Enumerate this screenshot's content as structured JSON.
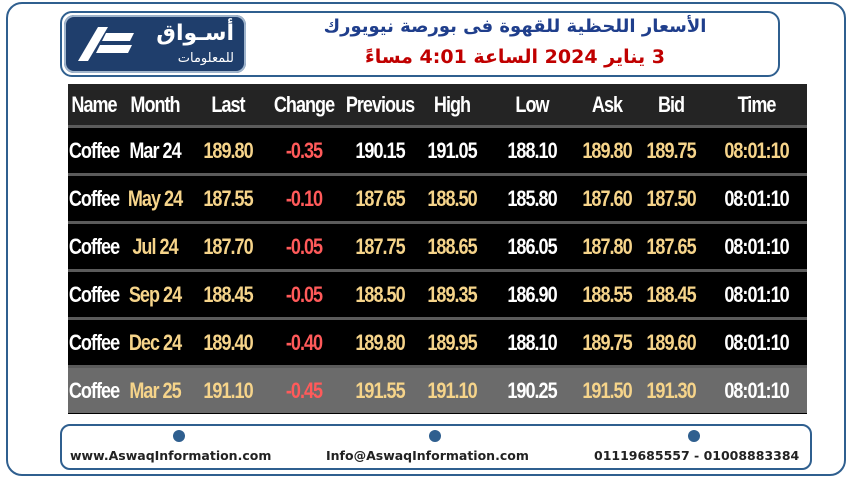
{
  "header": {
    "logo_ar": "أسـواق",
    "logo_ar_sub": "للمعلومات",
    "title_line1": "الأسعار اللحظية للقهوة فى بورصة نيويورك",
    "title_line2": "3 يناير 2024 الساعة 4:01 مساءً"
  },
  "table": {
    "columns": [
      "Name",
      "Month",
      "Last",
      "Change",
      "Previous",
      "High",
      "Low",
      "Ask",
      "Bid",
      "Time"
    ],
    "rows": [
      {
        "name": "Coffee",
        "month": "Mar 24",
        "last": "189.80",
        "change": "-0.35",
        "previous": "190.15",
        "high": "191.05",
        "low": "188.10",
        "ask": "189.80",
        "bid": "189.75",
        "time": "08:01:10"
      },
      {
        "name": "Coffee",
        "month": "May 24",
        "last": "187.55",
        "change": "-0.10",
        "previous": "187.65",
        "high": "188.50",
        "low": "185.80",
        "ask": "187.60",
        "bid": "187.50",
        "time": "08:01:10"
      },
      {
        "name": "Coffee",
        "month": "Jul 24",
        "last": "187.70",
        "change": "-0.05",
        "previous": "187.75",
        "high": "188.65",
        "low": "186.05",
        "ask": "187.80",
        "bid": "187.65",
        "time": "08:01:10"
      },
      {
        "name": "Coffee",
        "month": "Sep 24",
        "last": "188.45",
        "change": "-0.05",
        "previous": "188.50",
        "high": "189.35",
        "low": "186.90",
        "ask": "188.55",
        "bid": "188.45",
        "time": "08:01:10"
      },
      {
        "name": "Coffee",
        "month": "Dec 24",
        "last": "189.40",
        "change": "-0.40",
        "previous": "189.80",
        "high": "189.95",
        "low": "188.10",
        "ask": "189.75",
        "bid": "189.60",
        "time": "08:01:10"
      },
      {
        "name": "Coffee",
        "month": "Mar 25",
        "last": "191.10",
        "change": "-0.45",
        "previous": "191.55",
        "high": "191.10",
        "low": "190.25",
        "ask": "191.50",
        "bid": "191.30",
        "time": "08:01:10"
      }
    ]
  },
  "footer": {
    "website": "www.AswaqInformation.com",
    "email": "Info@AswaqInformation.com",
    "phones": "01119685557 - 01008883384"
  },
  "colors": {
    "brand": "#1f3e6c",
    "accent": "#2f5f8f",
    "title_red": "#c00000",
    "negative": "#ff5a5a",
    "price_gold": "#f6d48a"
  }
}
